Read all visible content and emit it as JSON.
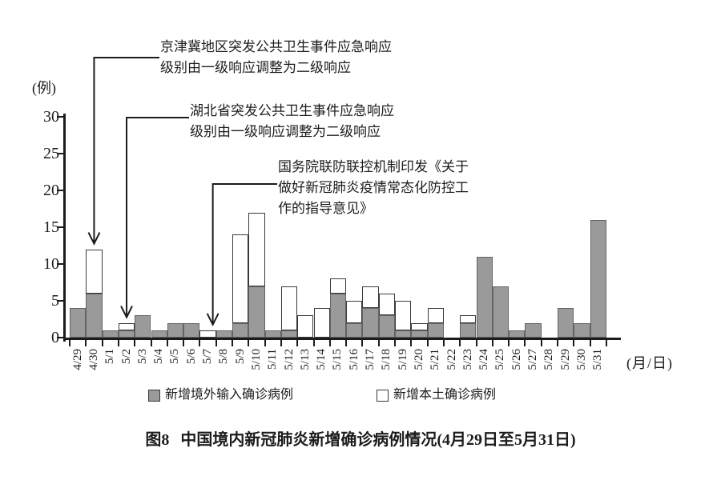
{
  "y_axis": {
    "unit_label": "(例)",
    "tick_labels": [
      "0",
      "5",
      "10",
      "15",
      "20",
      "25",
      "30"
    ],
    "tick_values": [
      0,
      5,
      10,
      15,
      20,
      25,
      30
    ]
  },
  "x_axis": {
    "unit_label": "(月/日)"
  },
  "chart_data": {
    "type": "bar",
    "stacked": true,
    "grid": false,
    "ylim": [
      0,
      30
    ],
    "categories": [
      "4/29",
      "4/30",
      "5/1",
      "5/2",
      "5/3",
      "5/4",
      "5/5",
      "5/6",
      "5/7",
      "5/8",
      "5/9",
      "5/10",
      "5/11",
      "5/12",
      "5/13",
      "5/14",
      "5/15",
      "5/16",
      "5/17",
      "5/18",
      "5/19",
      "5/20",
      "5/21",
      "5/22",
      "5/23",
      "5/24",
      "5/25",
      "5/26",
      "5/27",
      "5/28",
      "5/29",
      "5/30",
      "5/31"
    ],
    "series": [
      {
        "name": "新增境外输入确诊病例",
        "color": "#9a9a9a",
        "values": [
          4,
          6,
          1,
          1,
          3,
          1,
          2,
          2,
          0,
          1,
          2,
          7,
          1,
          1,
          0,
          0,
          6,
          2,
          4,
          3,
          1,
          1,
          2,
          0,
          2,
          11,
          7,
          1,
          2,
          0,
          4,
          2,
          16
        ]
      },
      {
        "name": "新增本土确诊病例",
        "color": "#ffffff",
        "values": [
          0,
          6,
          0,
          1,
          0,
          0,
          0,
          0,
          1,
          0,
          12,
          10,
          0,
          6,
          3,
          4,
          2,
          3,
          3,
          3,
          4,
          1,
          2,
          0,
          1,
          0,
          0,
          0,
          0,
          0,
          0,
          0,
          0
        ]
      }
    ],
    "annotations": [
      {
        "id": "jingjinji",
        "lines": [
          "京津冀地区突发公共卫生事件应急响应",
          "级别由一级响应调整为二级响应"
        ],
        "target_date": "4/30"
      },
      {
        "id": "hubei",
        "lines": [
          "湖北省突发公共卫生事件应急响应",
          "级别由一级响应调整为二级响应"
        ],
        "target_date": "5/2"
      },
      {
        "id": "guowuyuan",
        "lines": [
          "国务院联防联控机制印发《关于",
          "做好新冠肺炎疫情常态化防控工",
          "作的指导意见》"
        ],
        "target_date": "5/7"
      }
    ]
  },
  "legend": {
    "items": [
      {
        "label": "新增境外输入确诊病例",
        "swatch": "#9a9a9a"
      },
      {
        "label": "新增本土确诊病例",
        "swatch": "#ffffff"
      }
    ]
  },
  "caption": {
    "figure_label": "图8",
    "text": "中国境内新冠肺炎新增确诊病例情况(4月29日至5月31日)"
  }
}
